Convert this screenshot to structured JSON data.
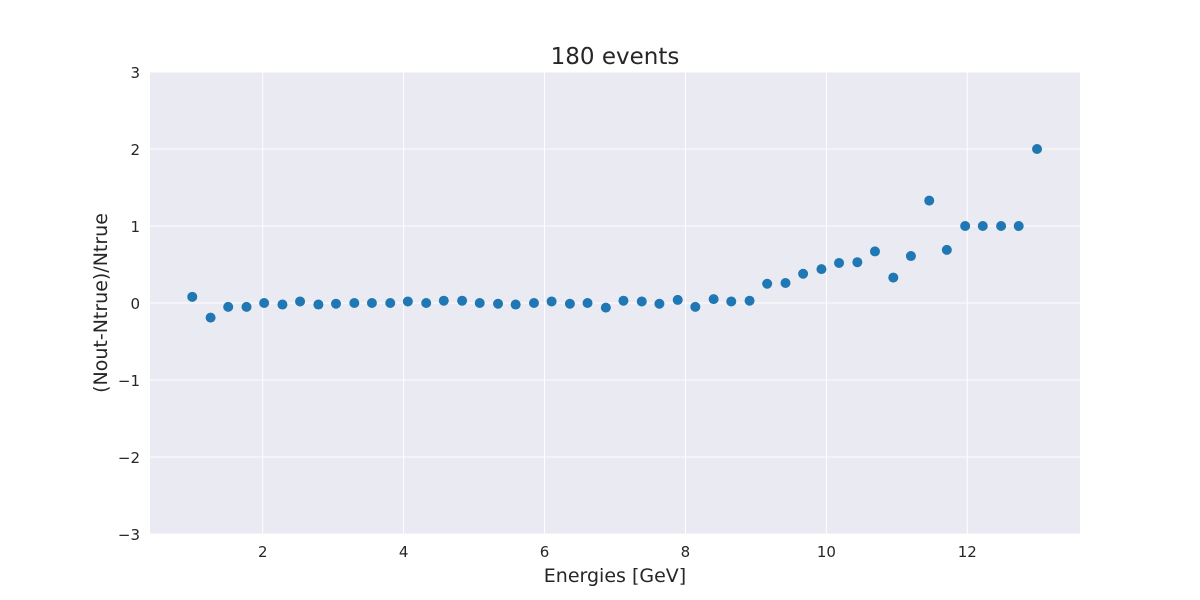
{
  "chart_data": {
    "type": "scatter",
    "title": "180 events",
    "xlabel": "Energies [GeV]",
    "ylabel": "(Nout-Ntrue)/Ntrue",
    "xlim": [
      0.4,
      13.6
    ],
    "ylim": [
      -3,
      3
    ],
    "x_ticks": [
      2,
      4,
      6,
      8,
      10,
      12
    ],
    "x_tick_labels": [
      "2",
      "4",
      "6",
      "8",
      "10",
      "12"
    ],
    "y_ticks": [
      -3,
      -2,
      -1,
      0,
      1,
      2,
      3
    ],
    "y_tick_labels": [
      "−3",
      "−2",
      "−1",
      "0",
      "1",
      "2",
      "3"
    ],
    "grid": true,
    "colors": {
      "plot_bg": "#eaeaf2",
      "grid": "#ffffff",
      "marker": "#1f77b4",
      "text": "#262626"
    },
    "series": [
      {
        "x": [
          1.0,
          1.26,
          1.51,
          1.77,
          2.02,
          2.28,
          2.53,
          2.79,
          3.04,
          3.3,
          3.55,
          3.81,
          4.06,
          4.32,
          4.57,
          4.83,
          5.08,
          5.34,
          5.59,
          5.85,
          6.1,
          6.36,
          6.61,
          6.87,
          7.12,
          7.38,
          7.63,
          7.89,
          8.14,
          8.4,
          8.65,
          8.91,
          9.16,
          9.42,
          9.67,
          9.93,
          10.18,
          10.44,
          10.69,
          10.95,
          11.2,
          11.46,
          11.71,
          11.97,
          12.22,
          12.48,
          12.73,
          12.99
        ],
        "y": [
          0.08,
          -0.19,
          -0.05,
          -0.05,
          0.0,
          -0.02,
          0.02,
          -0.02,
          -0.01,
          0.0,
          0.0,
          0.0,
          0.02,
          0.0,
          0.03,
          0.03,
          0.0,
          -0.01,
          -0.02,
          0.0,
          0.02,
          -0.01,
          0.0,
          -0.06,
          0.03,
          0.02,
          -0.01,
          0.04,
          -0.05,
          0.05,
          0.02,
          0.03,
          0.25,
          0.26,
          0.38,
          0.44,
          0.52,
          0.53,
          0.67,
          0.33,
          0.61,
          1.33,
          0.69,
          1.0,
          1.0,
          1.0,
          1.0,
          2.0
        ]
      }
    ]
  }
}
